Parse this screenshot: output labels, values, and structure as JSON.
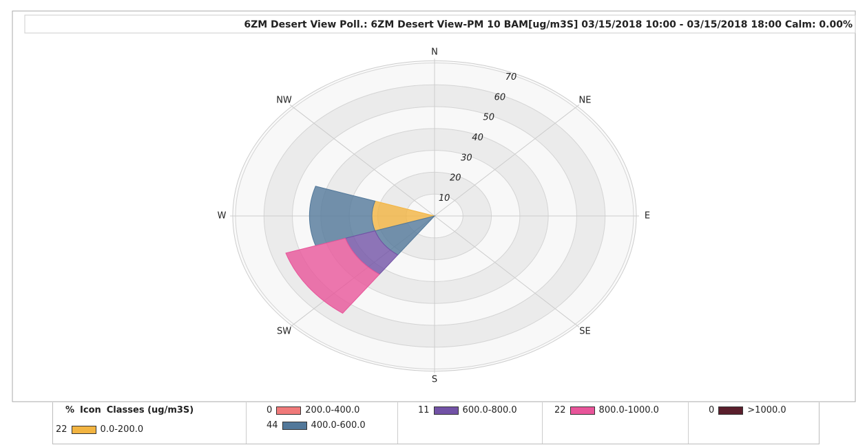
{
  "chart_data": {
    "type": "windrose",
    "title": "6ZM Desert View Poll.: 6ZM Desert View-PM 10 BAM[ug/m3S] 03/15/2018 10:00 - 03/15/2018 18:00 Calm: 0.00%",
    "directions": [
      "N",
      "NE",
      "E",
      "SE",
      "S",
      "SW",
      "W",
      "NW"
    ],
    "sector_angles": [
      270,
      234
    ],
    "sector_width": 36,
    "rlim": [
      0,
      70
    ],
    "rticks": [
      10,
      20,
      30,
      40,
      50,
      60,
      70
    ],
    "legend_header": [
      "%",
      "Icon",
      "Classes (ug/m3S)"
    ],
    "series": [
      {
        "name": "0.0-200.0",
        "color": "#f2b441",
        "percent": 22,
        "values": [
          22,
          0
        ]
      },
      {
        "name": "200.0-400.0",
        "color": "#f07a7a",
        "percent": 0,
        "values": [
          0,
          0
        ]
      },
      {
        "name": "400.0-600.0",
        "color": "#52789a",
        "percent": 44,
        "values": [
          22,
          22
        ]
      },
      {
        "name": "600.0-800.0",
        "color": "#7252a6",
        "percent": 11,
        "values": [
          0,
          11
        ]
      },
      {
        "name": "800.0-1000.0",
        "color": "#e8559a",
        "percent": 22,
        "values": [
          0,
          22
        ]
      },
      {
        "name": ">1000.0",
        "color": "#5a1f2c",
        "percent": 0,
        "values": [
          0,
          0
        ]
      }
    ]
  }
}
